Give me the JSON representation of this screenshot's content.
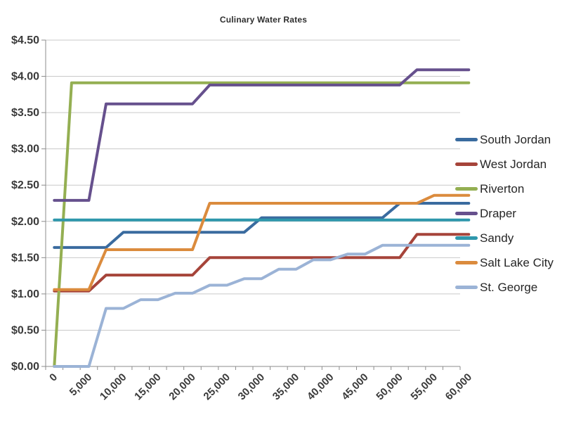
{
  "chart_data": {
    "type": "line",
    "title": "Culinary Water Rates",
    "legend_position": "right",
    "grid": true,
    "x_axis": {
      "min": 0,
      "max": 60000,
      "category_step": 2500,
      "tick_values": [
        0,
        5000,
        10000,
        15000,
        20000,
        25000,
        30000,
        35000,
        40000,
        45000,
        50000,
        55000,
        60000
      ],
      "tick_labels": [
        "0",
        "5,000",
        "10,000",
        "15,000",
        "20,000",
        "25,000",
        "30,000",
        "35,000",
        "40,000",
        "45,000",
        "50,000",
        "55,000",
        "60,000"
      ]
    },
    "y_axis": {
      "min": 0,
      "max": 4.5,
      "step": 0.5,
      "format": "$0.00",
      "tick_labels": [
        "$0.00",
        "$0.50",
        "$1.00",
        "$1.50",
        "$2.00",
        "$2.50",
        "$3.00",
        "$3.50",
        "$4.00",
        "$4.50"
      ]
    },
    "style": {
      "gridline_color": "#c9c9c9",
      "axis_color": "#8c8c8c",
      "label_color": "#3a3a3a"
    },
    "series": [
      {
        "name": "South Jordan",
        "color": "#3a6b9f",
        "points": [
          [
            0,
            1.64
          ],
          [
            7500,
            1.64
          ],
          [
            10000,
            1.85
          ],
          [
            27500,
            1.85
          ],
          [
            30000,
            2.05
          ],
          [
            47500,
            2.05
          ],
          [
            50000,
            2.25
          ],
          [
            60000,
            2.25
          ]
        ]
      },
      {
        "name": "West Jordan",
        "color": "#a6443a",
        "points": [
          [
            0,
            1.04
          ],
          [
            5000,
            1.04
          ],
          [
            7500,
            1.26
          ],
          [
            20000,
            1.26
          ],
          [
            22500,
            1.5
          ],
          [
            50000,
            1.5
          ],
          [
            52500,
            1.82
          ],
          [
            60000,
            1.82
          ]
        ]
      },
      {
        "name": "Riverton",
        "color": "#94af52",
        "points": [
          [
            0,
            0.0
          ],
          [
            2500,
            3.91
          ],
          [
            60000,
            3.91
          ]
        ]
      },
      {
        "name": "Draper",
        "color": "#66508d",
        "points": [
          [
            0,
            2.29
          ],
          [
            5000,
            2.29
          ],
          [
            7500,
            3.62
          ],
          [
            20000,
            3.62
          ],
          [
            22500,
            3.88
          ],
          [
            50000,
            3.88
          ],
          [
            52500,
            4.09
          ],
          [
            60000,
            4.09
          ]
        ]
      },
      {
        "name": "Sandy",
        "color": "#2e97ac",
        "points": [
          [
            0,
            2.02
          ],
          [
            60000,
            2.02
          ]
        ]
      },
      {
        "name": "Salt Lake City",
        "color": "#db8b3d",
        "points": [
          [
            0,
            1.06
          ],
          [
            5000,
            1.06
          ],
          [
            7500,
            1.61
          ],
          [
            20000,
            1.61
          ],
          [
            22500,
            2.25
          ],
          [
            52500,
            2.25
          ],
          [
            55000,
            2.36
          ],
          [
            60000,
            2.36
          ]
        ]
      },
      {
        "name": "St. George",
        "color": "#9bb3d6",
        "points": [
          [
            0,
            0.0
          ],
          [
            5000,
            0.0
          ],
          [
            7500,
            0.8
          ],
          [
            10000,
            0.8
          ],
          [
            12500,
            0.92
          ],
          [
            15000,
            0.92
          ],
          [
            17500,
            1.01
          ],
          [
            20000,
            1.01
          ],
          [
            22500,
            1.12
          ],
          [
            25000,
            1.12
          ],
          [
            27500,
            1.21
          ],
          [
            30000,
            1.21
          ],
          [
            32500,
            1.34
          ],
          [
            35000,
            1.34
          ],
          [
            37500,
            1.47
          ],
          [
            40000,
            1.47
          ],
          [
            42500,
            1.55
          ],
          [
            45000,
            1.55
          ],
          [
            47500,
            1.67
          ],
          [
            60000,
            1.67
          ]
        ]
      }
    ]
  }
}
